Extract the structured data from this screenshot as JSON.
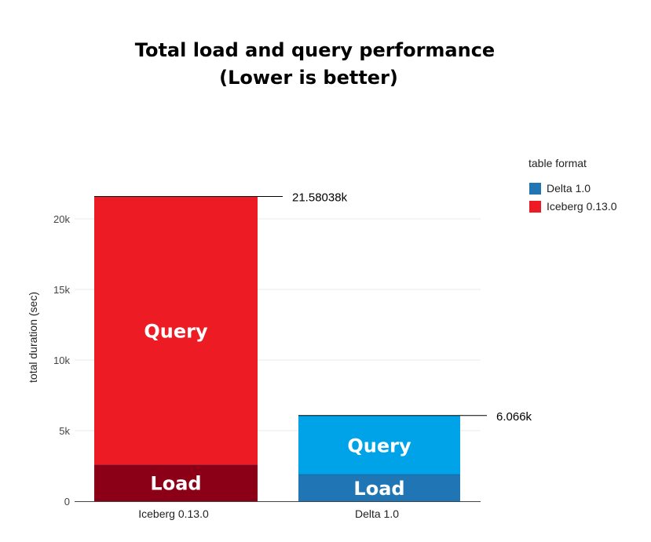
{
  "chart_data": {
    "type": "bar",
    "stacked": true,
    "title_lines": [
      "Total load and query performance",
      "(Lower is better)"
    ],
    "xlabel": "",
    "ylabel": "total duration (sec)",
    "ylim": [
      0,
      22000
    ],
    "yticks": [
      0,
      5000,
      10000,
      15000,
      20000
    ],
    "ytick_labels": [
      "0",
      "5k",
      "10k",
      "15k",
      "20k"
    ],
    "grid": true,
    "categories": [
      "Iceberg 0.13.0",
      "Delta 1.0"
    ],
    "series": [
      {
        "name": "Load",
        "values": [
          2600,
          1900
        ],
        "colors": [
          "#8b0016",
          "#2076b4"
        ]
      },
      {
        "name": "Query",
        "values": [
          18980.38,
          4166
        ],
        "colors": [
          "#ed1c24",
          "#00a2e8"
        ]
      }
    ],
    "totals": [
      21580.38,
      6066
    ],
    "total_labels": [
      "21.58038k",
      "6.066k"
    ],
    "legend": {
      "title": "table format",
      "placement": "top-right",
      "items": [
        {
          "label": "Delta 1.0",
          "color": "#2076b4"
        },
        {
          "label": "Iceberg 0.13.0",
          "color": "#ed1c24"
        }
      ]
    }
  }
}
